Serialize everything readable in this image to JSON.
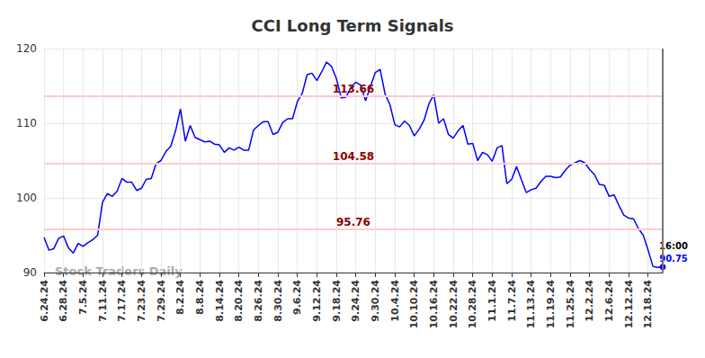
{
  "chart_data": {
    "type": "line",
    "title": "CCI Long Term Signals",
    "categories": [
      "6.24.24",
      null,
      null,
      null,
      "6.28.24",
      null,
      null,
      null,
      "7.5.24",
      null,
      null,
      null,
      "7.11.24",
      null,
      null,
      null,
      "7.17.24",
      null,
      null,
      null,
      "7.23.24",
      null,
      null,
      null,
      "7.29.24",
      null,
      null,
      null,
      "8.2.24",
      null,
      null,
      null,
      "8.8.24",
      null,
      null,
      null,
      "8.14.24",
      null,
      null,
      null,
      "8.20.24",
      null,
      null,
      null,
      "8.26.24",
      null,
      null,
      null,
      "8.30.24",
      null,
      null,
      null,
      "9.6.24",
      null,
      null,
      null,
      "9.12.24",
      null,
      null,
      null,
      "9.18.24",
      null,
      null,
      null,
      "9.24.24",
      null,
      null,
      null,
      "9.30.24",
      null,
      null,
      null,
      "10.4.24",
      null,
      null,
      null,
      "10.10.24",
      null,
      null,
      null,
      "10.16.24",
      null,
      null,
      null,
      "10.22.24",
      null,
      null,
      null,
      "10.28.24",
      null,
      null,
      null,
      "11.1.24",
      null,
      null,
      null,
      "11.7.24",
      null,
      null,
      null,
      "11.13.24",
      null,
      null,
      null,
      "11.19.24",
      null,
      null,
      null,
      "11.25.24",
      null,
      null,
      null,
      "12.2.24",
      null,
      null,
      null,
      "12.6.24",
      null,
      null,
      null,
      "12.12.24",
      null,
      null,
      null,
      "12.18.24",
      null,
      null,
      null
    ],
    "values": [
      94.7,
      93.0,
      93.2,
      94.6,
      94.9,
      93.3,
      92.6,
      93.9,
      93.5,
      94.0,
      94.4,
      95.0,
      99.4,
      100.6,
      100.2,
      100.9,
      102.6,
      102.1,
      102.1,
      101.0,
      101.3,
      102.5,
      102.6,
      104.6,
      105.0,
      106.2,
      106.9,
      109.0,
      111.9,
      107.6,
      109.7,
      108.1,
      107.8,
      107.5,
      107.6,
      107.2,
      107.1,
      106.1,
      106.7,
      106.4,
      106.8,
      106.4,
      106.4,
      109.1,
      109.7,
      110.2,
      110.2,
      108.5,
      108.8,
      110.1,
      110.6,
      110.6,
      112.9,
      114.0,
      116.5,
      116.7,
      115.7,
      116.9,
      118.2,
      117.6,
      116.0,
      113.4,
      113.5,
      114.8,
      115.5,
      115.1,
      113.0,
      114.9,
      116.8,
      117.2,
      113.9,
      112.5,
      109.8,
      109.5,
      110.3,
      109.7,
      108.3,
      109.2,
      110.4,
      112.6,
      113.8,
      110.0,
      110.6,
      108.5,
      108.0,
      109.0,
      109.7,
      107.2,
      107.3,
      105.0,
      106.1,
      105.8,
      104.9,
      106.7,
      107.0,
      101.9,
      102.5,
      104.2,
      102.4,
      100.7,
      101.1,
      101.3,
      102.2,
      102.9,
      102.9,
      102.7,
      102.8,
      103.7,
      104.4,
      104.7,
      105.0,
      104.7,
      103.8,
      103.1,
      101.8,
      101.7,
      100.2,
      100.4,
      99.0,
      97.7,
      97.3,
      97.2,
      95.9,
      95.0,
      93.0,
      90.8,
      90.7,
      90.75
    ],
    "color": "#0000ff",
    "ylim": [
      90,
      120
    ],
    "yticks": [
      90,
      100,
      110,
      120
    ],
    "grid": true,
    "signals": [
      113.66,
      104.58,
      95.76
    ],
    "last_label": "16:00",
    "watermark": "Stock Traders Daily"
  }
}
